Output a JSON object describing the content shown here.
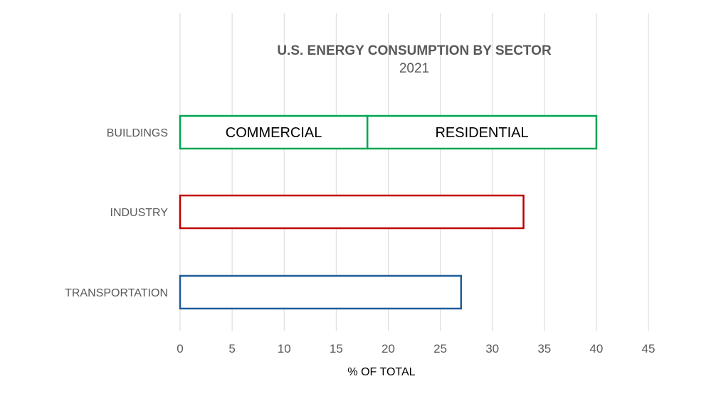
{
  "chart_data": {
    "type": "bar",
    "orientation": "horizontal",
    "title": "U.S. ENERGY CONSUMPTION BY SECTOR",
    "subtitle": "2021",
    "xlabel": "% OF TOTAL",
    "xlim": [
      0,
      45
    ],
    "xticks": [
      0,
      5,
      10,
      15,
      20,
      25,
      30,
      35,
      40,
      45
    ],
    "grid": true,
    "categories": [
      "BUILDINGS",
      "INDUSTRY",
      "TRANSPORTATION"
    ],
    "bars": [
      {
        "category": "BUILDINGS",
        "color": "#00a651",
        "segments": [
          {
            "label": "COMMERCIAL",
            "start": 0,
            "end": 18
          },
          {
            "label": "RESIDENTIAL",
            "start": 18,
            "end": 40
          }
        ]
      },
      {
        "category": "INDUSTRY",
        "color": "#c00000",
        "segments": [
          {
            "label": "",
            "start": 0,
            "end": 33
          }
        ]
      },
      {
        "category": "TRANSPORTATION",
        "color": "#1f5c99",
        "segments": [
          {
            "label": "",
            "start": 0,
            "end": 27
          }
        ]
      }
    ]
  }
}
